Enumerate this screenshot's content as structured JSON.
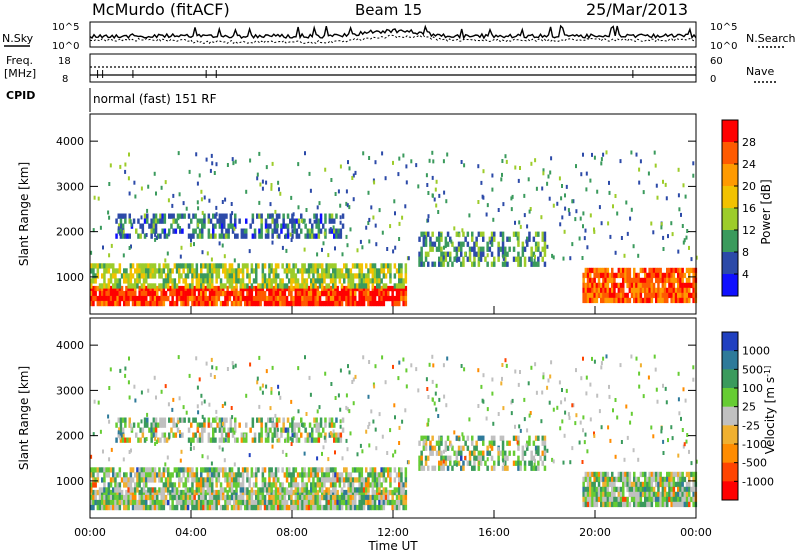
{
  "header": {
    "station": "McMurdo (fitACF)",
    "beam": "Beam 15",
    "date": "25/Mar/2013"
  },
  "summary_panels": {
    "nsky_label": "N.Sky",
    "nsearch_label": "N.Search",
    "nsky_ticks": [
      "10^5",
      "10^0"
    ],
    "nsearch_ticks": [
      "10^5",
      "10^0"
    ],
    "freq_label_line1": "Freq.",
    "freq_label_line2": "[MHz]",
    "freq_ticks": [
      "18",
      "8"
    ],
    "nave_label": "Nave",
    "nave_ticks": [
      "60",
      "0"
    ],
    "cpid_label": "CPID",
    "cpid_text": "normal (fast) 151 RF"
  },
  "chart_data": [
    {
      "type": "heatmap",
      "parameter": "Power",
      "ylabel": "Slant Range [km]",
      "ylim": [
        180,
        4600
      ],
      "yticks": [
        "4000",
        "3000",
        "2000",
        "1000"
      ],
      "colorbar_label": "Power [dB]",
      "colorbar_ticks": [
        "28",
        "24",
        "20",
        "16",
        "12",
        "8",
        "4"
      ],
      "colorbar_colors": [
        "#ff0000",
        "#ff5a00",
        "#ff9a00",
        "#f2c200",
        "#9dcc2a",
        "#3a9a5c",
        "#2c4aa8",
        "#1010ff"
      ],
      "echo_bands": [
        {
          "x_start": "00:00",
          "x_end": "12:30",
          "range_km": [
            450,
            800
          ],
          "power_db": 28
        },
        {
          "x_start": "00:00",
          "x_end": "12:30",
          "range_km": [
            800,
            1300
          ],
          "power_db": 14
        },
        {
          "x_start": "13:00",
          "x_end": "18:00",
          "range_km": [
            1300,
            2000
          ],
          "power_db": 10
        },
        {
          "x_start": "19:30",
          "x_end": "24:00",
          "range_km": [
            500,
            1200
          ],
          "power_db": 26
        },
        {
          "x_start": "01:00",
          "x_end": "10:00",
          "range_km": [
            1900,
            2400
          ],
          "power_db": 8
        }
      ]
    },
    {
      "type": "heatmap",
      "parameter": "Velocity",
      "ylabel": "Slant Range [km]",
      "ylim": [
        180,
        4600
      ],
      "yticks": [
        "4000",
        "3000",
        "2000",
        "1000"
      ],
      "colorbar_label": "Velocity [m s^-1]",
      "colorbar_ticks": [
        "1000",
        "500",
        "100",
        "25",
        "-25",
        "-100",
        "-500",
        "-1000"
      ],
      "colorbar_colors": [
        "#2040c0",
        "#2e7a9a",
        "#3a9a5c",
        "#66cc33",
        "#c0c0c0",
        "#f0b030",
        "#ff8c00",
        "#ff4400",
        "#ff0000"
      ],
      "xlabel": "Time UT",
      "xticks": [
        "00:00",
        "04:00",
        "08:00",
        "12:00",
        "16:00",
        "20:00",
        "00:00"
      ]
    }
  ]
}
